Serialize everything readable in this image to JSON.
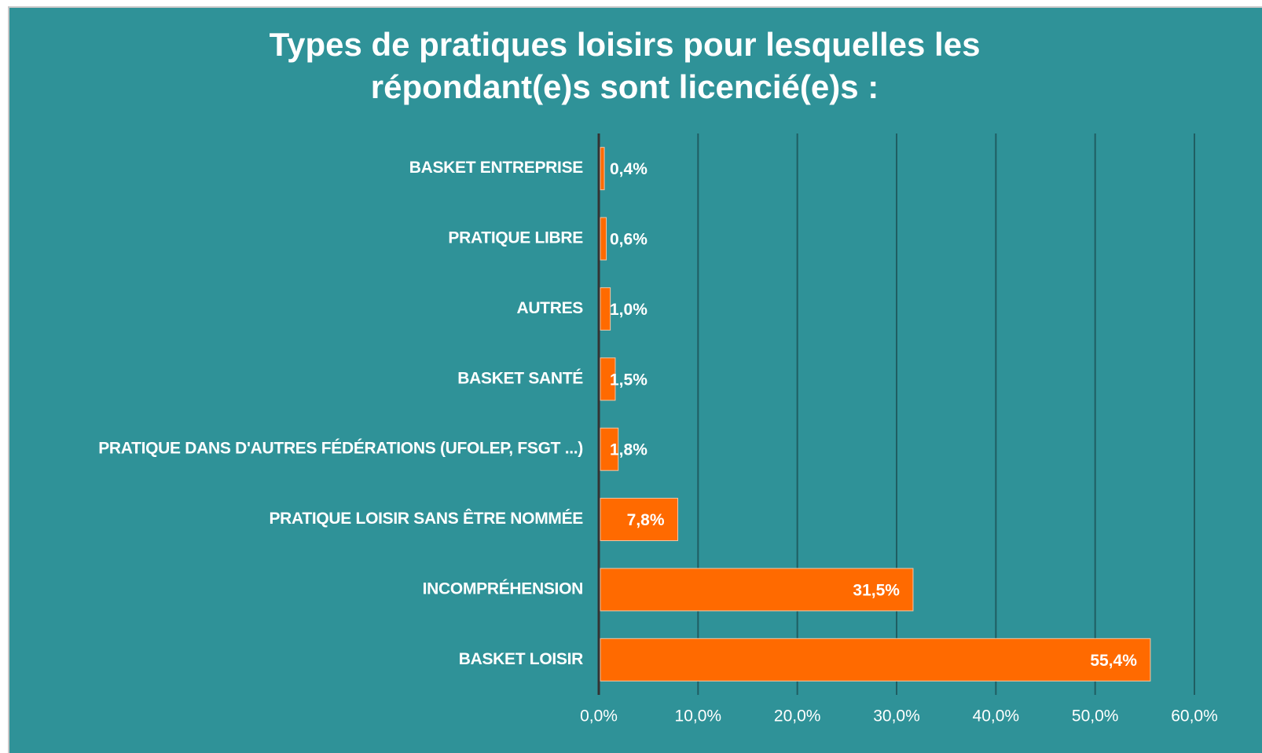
{
  "chart_data": {
    "type": "bar",
    "orientation": "horizontal",
    "title": "Types de pratiques loisirs pour lesquelles les répondant(e)s sont licencié(e)s :",
    "categories": [
      "BASKET ENTREPRISE",
      "PRATIQUE LIBRE",
      "AUTRES",
      "BASKET SANTÉ",
      "PRATIQUE DANS D'AUTRES FÉDÉRATIONS (UFOLEP, FSGT ...)",
      "PRATIQUE LOISIR SANS ÊTRE NOMMÉE",
      "INCOMPRÉHENSION",
      "BASKET LOISIR"
    ],
    "values": [
      0.4,
      0.6,
      1.0,
      1.5,
      1.8,
      7.8,
      31.5,
      55.4
    ],
    "value_labels": [
      "0,4%",
      "0,6%",
      "1,0%",
      "1,5%",
      "1,8%",
      "7,8%",
      "31,5%",
      "55,4%"
    ],
    "color": "#ff6a00",
    "xlim": [
      0,
      60
    ],
    "xticks": [
      {
        "value": 0,
        "label": "0,0%"
      },
      {
        "value": 10,
        "label": "10,0%"
      },
      {
        "value": 20,
        "label": "20,0%"
      },
      {
        "value": 30,
        "label": "30,0%"
      },
      {
        "value": 40,
        "label": "40,0%"
      },
      {
        "value": 50,
        "label": "50,0%"
      },
      {
        "value": 60,
        "label": "60,0%"
      }
    ],
    "grid": true
  }
}
